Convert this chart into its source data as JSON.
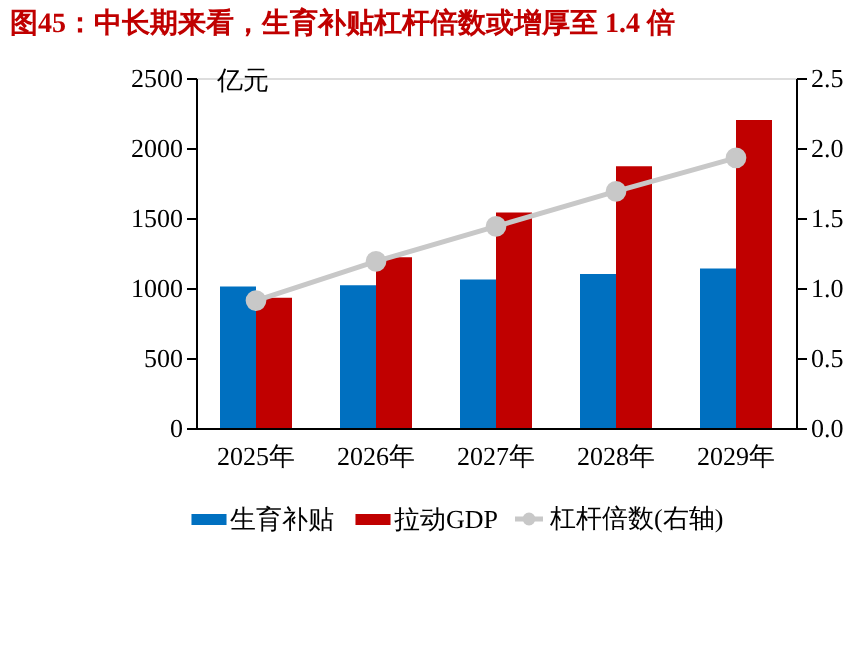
{
  "chart_data": {
    "type": "bar",
    "title": "图45：中长期来看，生育补贴杠杆倍数或增厚至 1.4 倍",
    "categories": [
      "2025年",
      "2026年",
      "2027年",
      "2028年",
      "2029年"
    ],
    "ylabel": "亿元",
    "series": [
      {
        "name": "生育补贴",
        "color": "#0070c0",
        "values": [
          1010,
          1020,
          1060,
          1100,
          1140
        ]
      },
      {
        "name": "拉动GDP",
        "color": "#c00000",
        "values": [
          930,
          1220,
          1540,
          1870,
          2200
        ]
      },
      {
        "name": "杠杆倍数(右轴)",
        "type": "line",
        "axis": "y2",
        "color": "#c8c8c8",
        "marker": "circle",
        "values": [
          0.91,
          1.19,
          1.44,
          1.69,
          1.93
        ]
      }
    ],
    "ylim": [
      0,
      2500
    ],
    "yticks": [
      0,
      500,
      1000,
      1500,
      2000,
      2500
    ],
    "y2lim": [
      0,
      2.5
    ],
    "y2ticks": [
      {
        "value": 0,
        "label": "0.0"
      },
      {
        "value": 0.5,
        "label": "0.5"
      },
      {
        "value": 1,
        "label": "1.0"
      },
      {
        "value": 1.5,
        "label": "1.5"
      },
      {
        "value": 2,
        "label": "2.0"
      },
      {
        "value": 2.5,
        "label": "2.5"
      }
    ],
    "grid": false,
    "legend": "bottom"
  }
}
